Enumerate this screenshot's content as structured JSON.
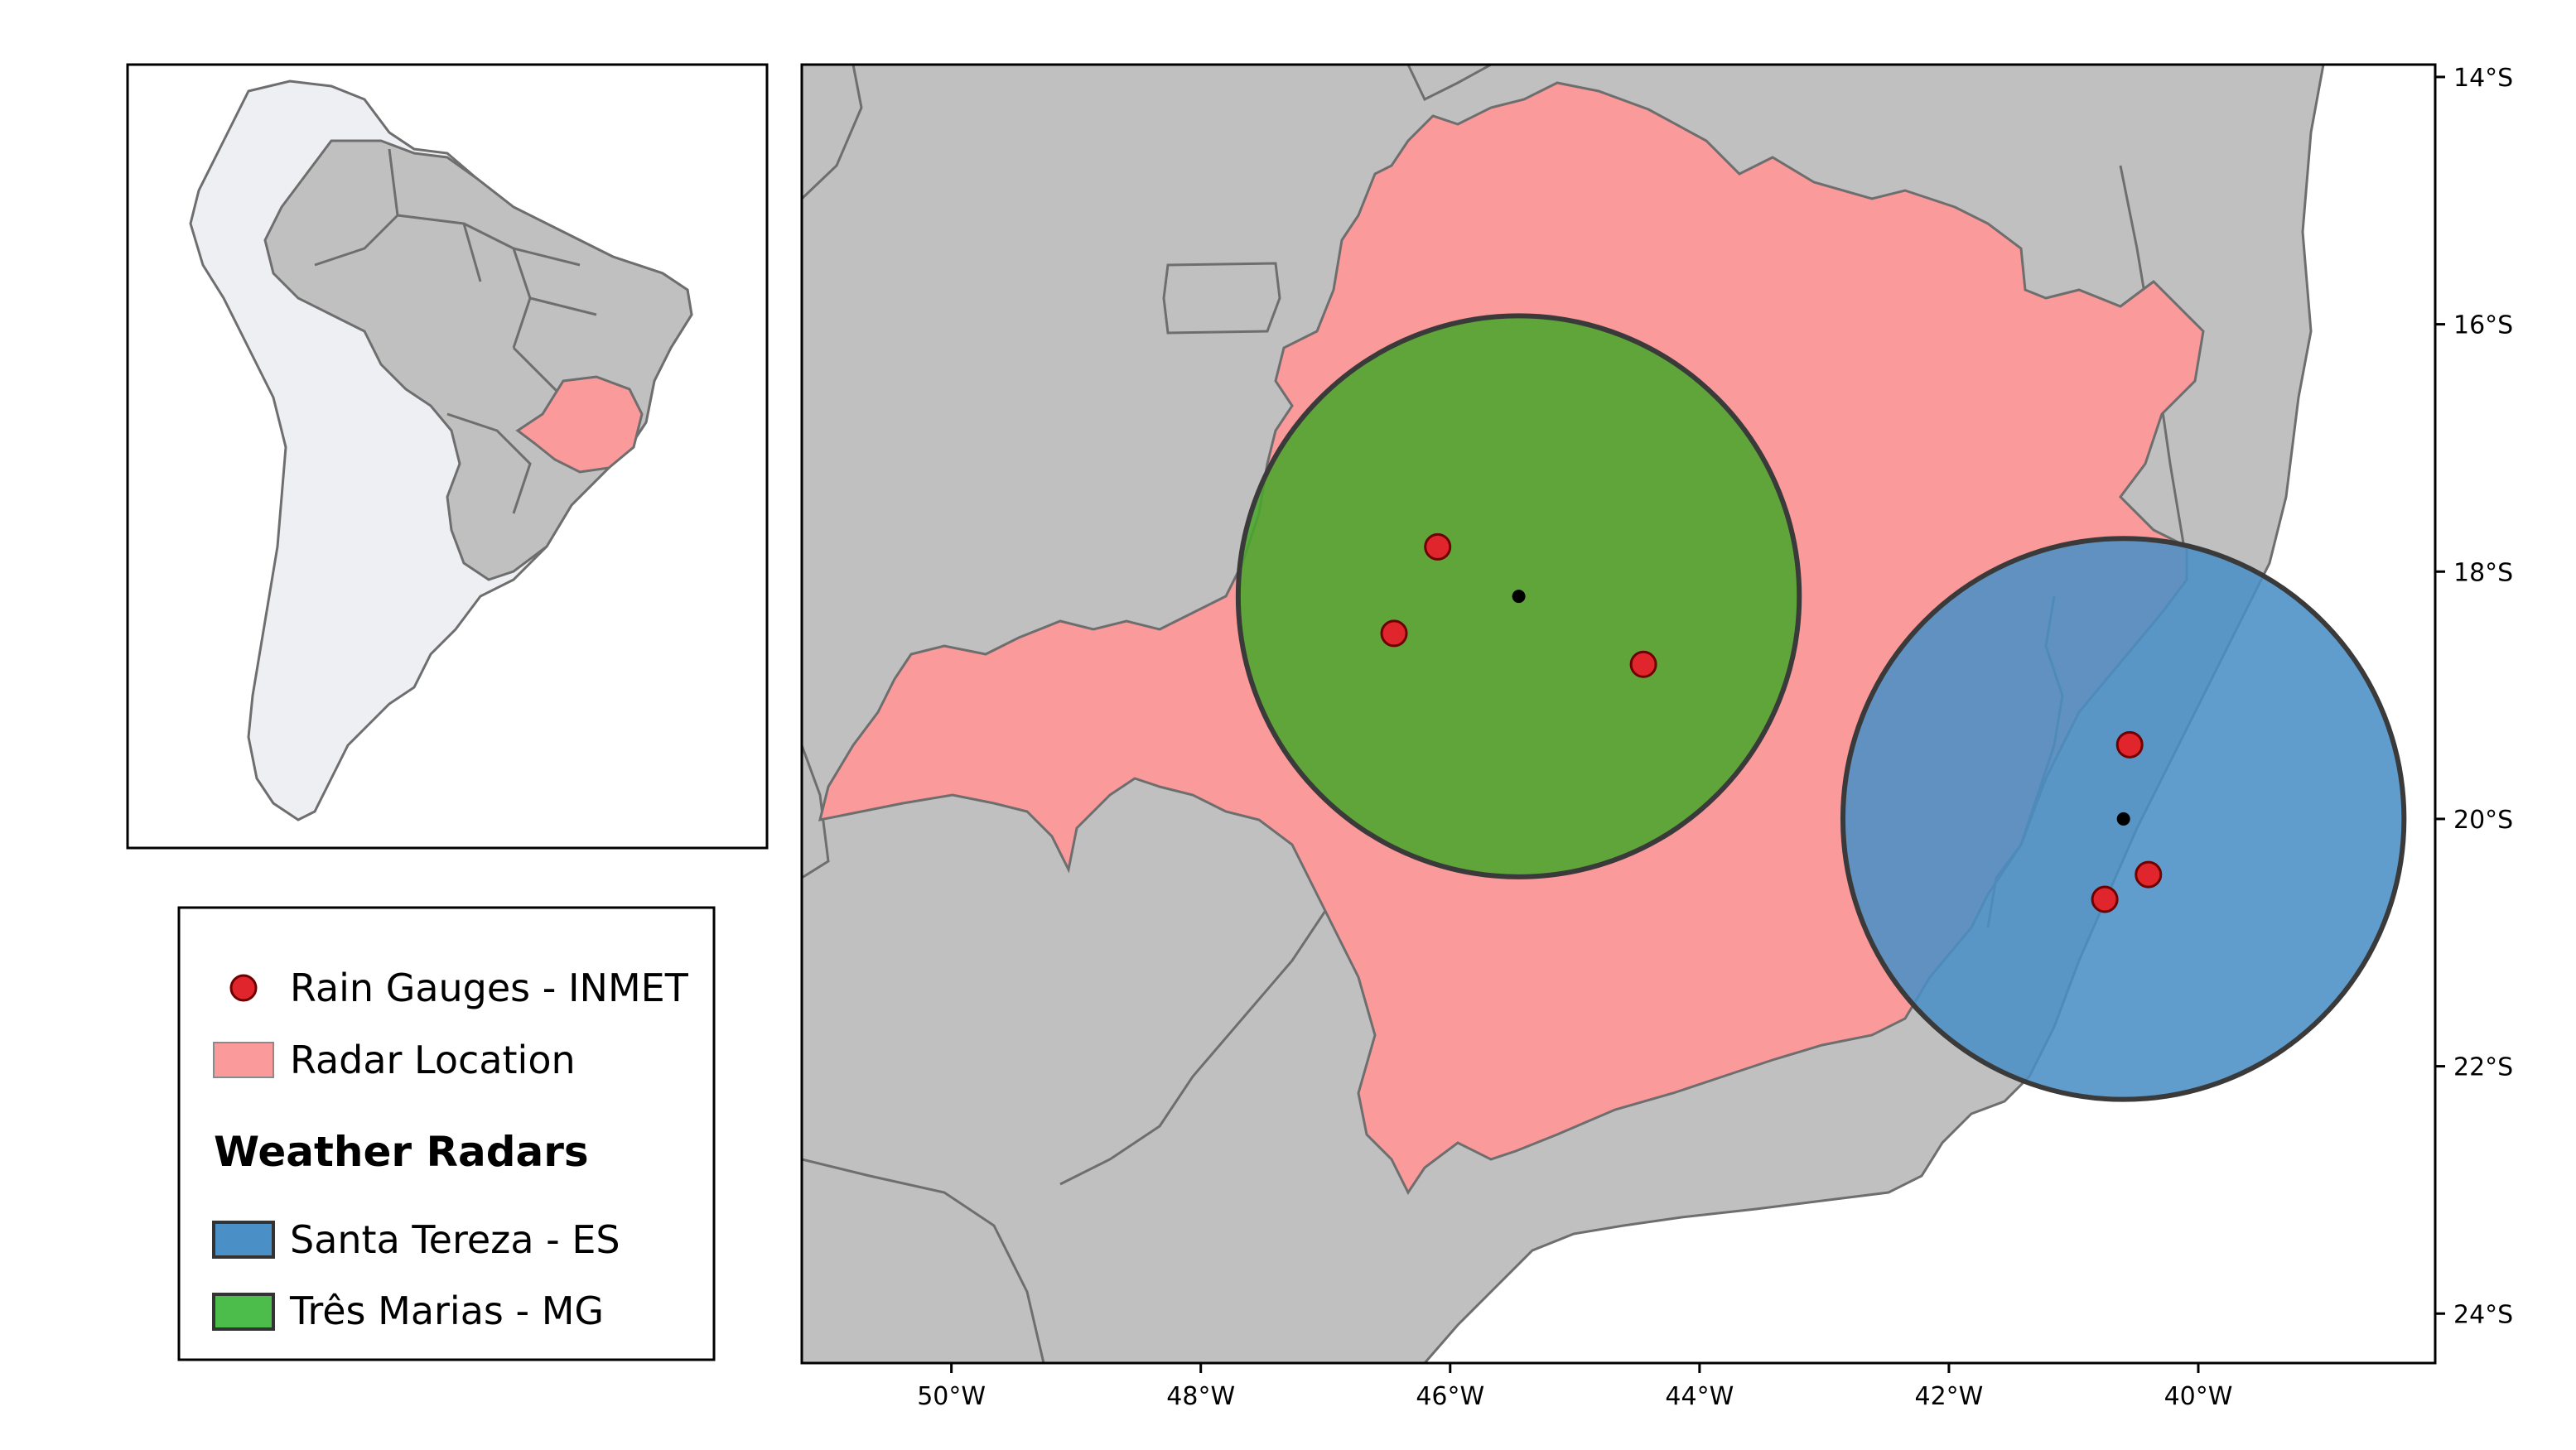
{
  "colors": {
    "land": "#c0c0c0",
    "border": "#6e6e6e",
    "state": "#fa9a9a",
    "inset_land": "#eeeff3",
    "radar_santa_tereza": "#4a90c6",
    "radar_tres_marias": "#4aa62c",
    "gauge": "#e0262c",
    "center": "#000000"
  },
  "map": {
    "lon_range": [
      -51.2,
      -38.1
    ],
    "lat_range": [
      -24.4,
      -13.9
    ],
    "x_ticks": [
      {
        "lon": -50,
        "label": "50°W"
      },
      {
        "lon": -48,
        "label": "48°W"
      },
      {
        "lon": -46,
        "label": "46°W"
      },
      {
        "lon": -44,
        "label": "44°W"
      },
      {
        "lon": -42,
        "label": "42°W"
      },
      {
        "lon": -40,
        "label": "40°W"
      }
    ],
    "y_ticks": [
      {
        "lat": -14,
        "label": "14°S"
      },
      {
        "lat": -16,
        "label": "16°S"
      },
      {
        "lat": -18,
        "label": "18°S"
      },
      {
        "lat": -20,
        "label": "20°S"
      },
      {
        "lat": -22,
        "label": "22°S"
      },
      {
        "lat": -24,
        "label": "24°S"
      }
    ],
    "radars": [
      {
        "name": "Três Marias - MG",
        "lon": -45.45,
        "lat": -18.2,
        "radius_deg": 2.25,
        "color": "#4aa62c"
      },
      {
        "name": "Santa Tereza - ES",
        "lon": -40.6,
        "lat": -20.0,
        "radius_deg": 2.25,
        "color": "#4a90c6"
      }
    ],
    "gauges": [
      {
        "lon": -46.1,
        "lat": -17.8
      },
      {
        "lon": -46.45,
        "lat": -18.5
      },
      {
        "lon": -44.45,
        "lat": -18.75
      },
      {
        "lon": -40.55,
        "lat": -19.4
      },
      {
        "lon": -40.4,
        "lat": -20.45
      },
      {
        "lon": -40.75,
        "lat": -20.65
      }
    ]
  },
  "legend": {
    "rain_gauges": "Rain Gauges - INMET",
    "radar_location": "Radar Location",
    "heading": "Weather Radars",
    "santa_tereza": "Santa Tereza - ES",
    "tres_marias": "Três Marias - MG"
  }
}
